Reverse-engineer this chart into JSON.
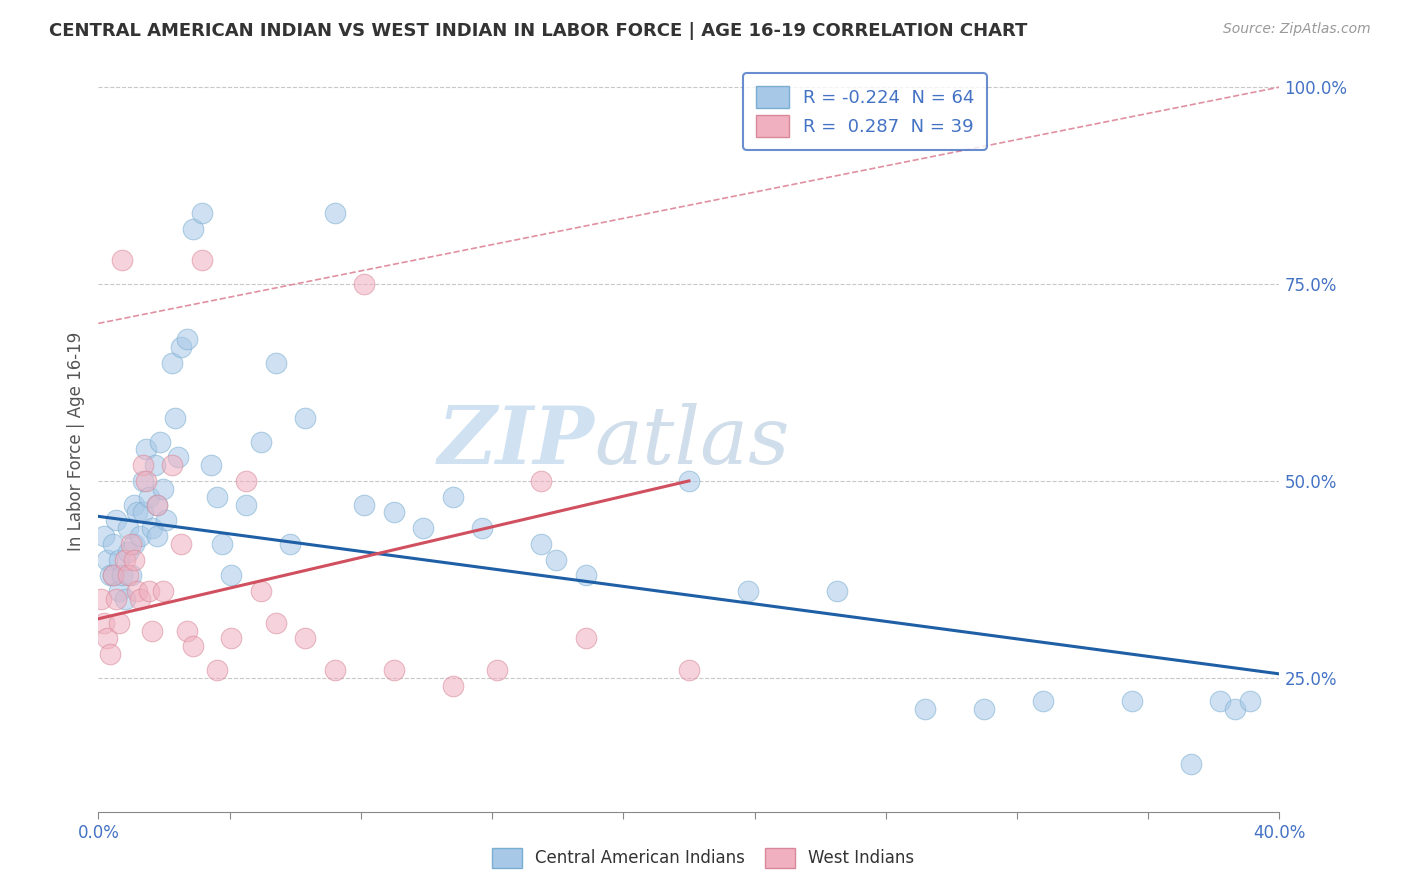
{
  "title": "CENTRAL AMERICAN INDIAN VS WEST INDIAN IN LABOR FORCE | AGE 16-19 CORRELATION CHART",
  "source": "Source: ZipAtlas.com",
  "ylabel": "In Labor Force | Age 16-19",
  "xlim": [
    0.0,
    0.4
  ],
  "ylim": [
    0.08,
    1.02
  ],
  "legend_entries": [
    {
      "label": "R = -0.224  N = 64",
      "color": "#a8c8e8"
    },
    {
      "label": "R =  0.287  N = 39",
      "color": "#f0b0c0"
    }
  ],
  "watermark_zip": "ZIP",
  "watermark_atlas": "atlas",
  "blue_color": "#a8c8e8",
  "pink_color": "#f0b0c0",
  "blue_line_color": "#1f5fa6",
  "pink_line_color": "#d05060",
  "dashed_line_color": "#e090a0",
  "grid_color": "#c8c8c8",
  "blue_scatter_x": [
    0.002,
    0.003,
    0.004,
    0.005,
    0.005,
    0.006,
    0.007,
    0.007,
    0.008,
    0.009,
    0.01,
    0.01,
    0.011,
    0.012,
    0.012,
    0.013,
    0.014,
    0.015,
    0.015,
    0.016,
    0.017,
    0.018,
    0.019,
    0.02,
    0.02,
    0.021,
    0.022,
    0.023,
    0.025,
    0.026,
    0.027,
    0.028,
    0.03,
    0.032,
    0.035,
    0.038,
    0.04,
    0.042,
    0.045,
    0.05,
    0.055,
    0.06,
    0.065,
    0.07,
    0.08,
    0.09,
    0.1,
    0.11,
    0.12,
    0.13,
    0.15,
    0.155,
    0.165,
    0.2,
    0.22,
    0.25,
    0.28,
    0.3,
    0.32,
    0.35,
    0.37,
    0.38,
    0.385,
    0.39
  ],
  "blue_scatter_y": [
    0.43,
    0.4,
    0.38,
    0.42,
    0.38,
    0.45,
    0.4,
    0.36,
    0.38,
    0.35,
    0.44,
    0.41,
    0.38,
    0.47,
    0.42,
    0.46,
    0.43,
    0.5,
    0.46,
    0.54,
    0.48,
    0.44,
    0.52,
    0.47,
    0.43,
    0.55,
    0.49,
    0.45,
    0.65,
    0.58,
    0.53,
    0.67,
    0.68,
    0.82,
    0.84,
    0.52,
    0.48,
    0.42,
    0.38,
    0.47,
    0.55,
    0.65,
    0.42,
    0.58,
    0.84,
    0.47,
    0.46,
    0.44,
    0.48,
    0.44,
    0.42,
    0.4,
    0.38,
    0.5,
    0.36,
    0.36,
    0.21,
    0.21,
    0.22,
    0.22,
    0.14,
    0.22,
    0.21,
    0.22
  ],
  "pink_scatter_x": [
    0.001,
    0.002,
    0.003,
    0.004,
    0.005,
    0.006,
    0.007,
    0.008,
    0.009,
    0.01,
    0.011,
    0.012,
    0.013,
    0.014,
    0.015,
    0.016,
    0.017,
    0.018,
    0.02,
    0.022,
    0.025,
    0.028,
    0.03,
    0.032,
    0.035,
    0.04,
    0.045,
    0.05,
    0.055,
    0.06,
    0.07,
    0.08,
    0.09,
    0.1,
    0.12,
    0.135,
    0.15,
    0.165,
    0.2
  ],
  "pink_scatter_y": [
    0.35,
    0.32,
    0.3,
    0.28,
    0.38,
    0.35,
    0.32,
    0.78,
    0.4,
    0.38,
    0.42,
    0.4,
    0.36,
    0.35,
    0.52,
    0.5,
    0.36,
    0.31,
    0.47,
    0.36,
    0.52,
    0.42,
    0.31,
    0.29,
    0.78,
    0.26,
    0.3,
    0.5,
    0.36,
    0.32,
    0.3,
    0.26,
    0.75,
    0.26,
    0.24,
    0.26,
    0.5,
    0.3,
    0.26
  ],
  "blue_trend_x": [
    0.0,
    0.4
  ],
  "blue_trend_y": [
    0.455,
    0.255
  ],
  "pink_trend_x": [
    0.0,
    0.2
  ],
  "pink_trend_y": [
    0.325,
    0.5
  ],
  "dashed_trend_x": [
    0.0,
    0.4
  ],
  "dashed_trend_y": [
    0.7,
    1.0
  ],
  "ytick_positions": [
    0.25,
    0.5,
    0.75,
    1.0
  ],
  "ytick_labels": [
    "25.0%",
    "50.0%",
    "75.0%",
    "100.0%"
  ],
  "xtick_positions": [
    0.0,
    0.04444,
    0.08889,
    0.13333,
    0.17778,
    0.22222,
    0.26667,
    0.31111,
    0.35556,
    0.4
  ],
  "xtick_show": [
    true,
    false,
    false,
    false,
    false,
    false,
    false,
    false,
    false,
    true
  ]
}
